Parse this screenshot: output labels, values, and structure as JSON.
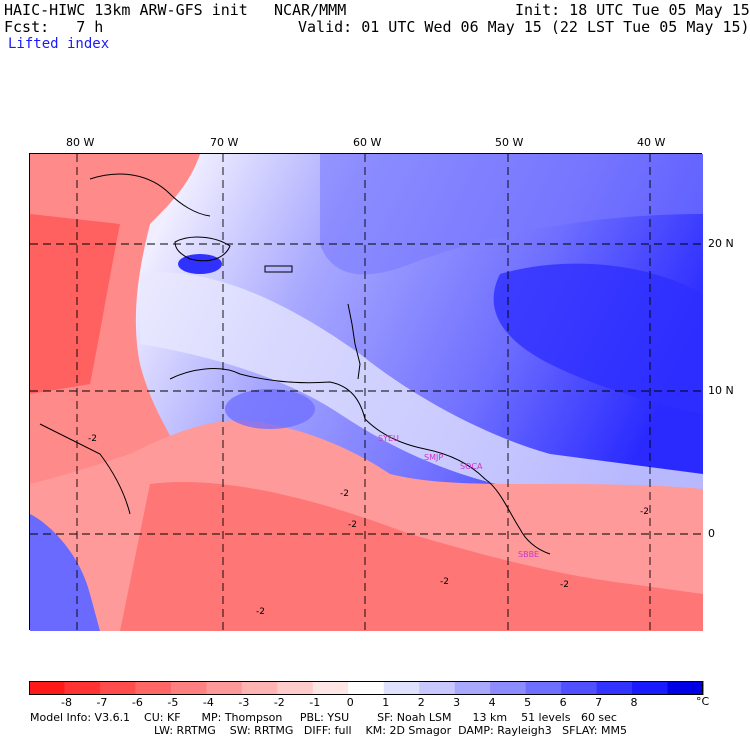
{
  "header": {
    "model": "HAIC-HIWC 13km ARW-GFS init",
    "org": "NCAR/MMM",
    "init": "Init: 18 UTC Tue 05 May 15",
    "fcst": "Fcst:   7 h",
    "valid": "Valid: 01 UTC Wed 06 May 15 (22 LST Tue 05 May 15)",
    "field": "Lifted index"
  },
  "axes": {
    "lon_labels": [
      "80 W",
      "70 W",
      "60 W",
      "50 W",
      "40 W"
    ],
    "lat_labels": [
      "20 N",
      "10 N",
      "0"
    ]
  },
  "contour_labels": [
    "-2",
    "-2",
    "-2",
    "-2",
    "-2",
    "-2",
    "-2"
  ],
  "stations": [
    "SYEU",
    "SMJP",
    "SOCA",
    "SBBE"
  ],
  "colorbar": {
    "ticks": [
      "-8",
      "-7",
      "-6",
      "-5",
      "-4",
      "-3",
      "-2",
      "-1",
      "0",
      "1",
      "2",
      "3",
      "4",
      "5",
      "6",
      "7",
      "8"
    ],
    "unit": "°C",
    "colors": [
      "#ff1a1a",
      "#ff3333",
      "#ff4d4d",
      "#ff6666",
      "#ff8080",
      "#ff9999",
      "#ffb3b3",
      "#ffcccc",
      "#ffe6e6",
      "#ffffff",
      "#e0e0ff",
      "#c8c8ff",
      "#a8a8ff",
      "#8c8cff",
      "#6f6fff",
      "#5050ff",
      "#3333ff",
      "#1a1aff",
      "#0000e6"
    ]
  },
  "footer": {
    "line1": "Model Info: V3.6.1    CU: KF      MP: Thompson     PBL: YSU        SF: Noah LSM      13 km    51 levels   60 sec",
    "line2": "LW: RRTMG    SW: RRTMG   DIFF: full    KM: 2D Smagor  DAMP: Rayleigh3   SFLAY: MM5"
  },
  "colors": {
    "title_blue": "#1a1aff",
    "station_magenta": "#cc33cc"
  }
}
